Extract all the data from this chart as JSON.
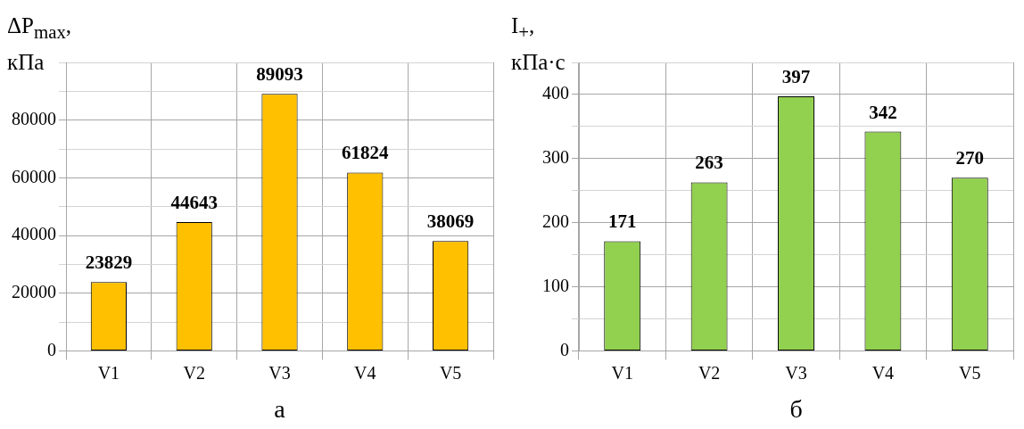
{
  "chart_data": [
    {
      "type": "bar",
      "xlabel": "а",
      "ylabel": "ΔP$_{max}$, кПа",
      "categories": [
        "V1",
        "V2",
        "V3",
        "V4",
        "V5"
      ],
      "values": [
        23829,
        44643,
        89093,
        61824,
        38069
      ],
      "color": "#ffc000",
      "ylim": [
        0,
        100000
      ],
      "yticks": [
        0,
        {
          "value": 10000,
          "label": null
        },
        20000,
        {
          "value": 30000,
          "label": null
        },
        40000,
        {
          "value": 50000,
          "label": null
        },
        60000,
        {
          "value": 70000,
          "label": null
        },
        80000,
        {
          "value": 90000,
          "label": null
        },
        {
          "value": 100000,
          "label": null
        }
      ],
      "grid": true,
      "data_labels": true
    },
    {
      "type": "bar",
      "xlabel": "б",
      "ylabel": "I$_{+}$, кПа·с",
      "categories": [
        "V1",
        "V2",
        "V3",
        "V4",
        "V5"
      ],
      "values": [
        171,
        263,
        397,
        342,
        270
      ],
      "color": "#92d050",
      "ylim": [
        0,
        450
      ],
      "yticks": [
        0,
        {
          "value": 50,
          "label": null
        },
        100,
        {
          "value": 150,
          "label": null
        },
        200,
        {
          "value": 250,
          "label": null
        },
        300,
        {
          "value": 350,
          "label": null
        },
        400,
        {
          "value": 450,
          "label": null
        }
      ],
      "grid": true,
      "data_labels": true
    }
  ]
}
